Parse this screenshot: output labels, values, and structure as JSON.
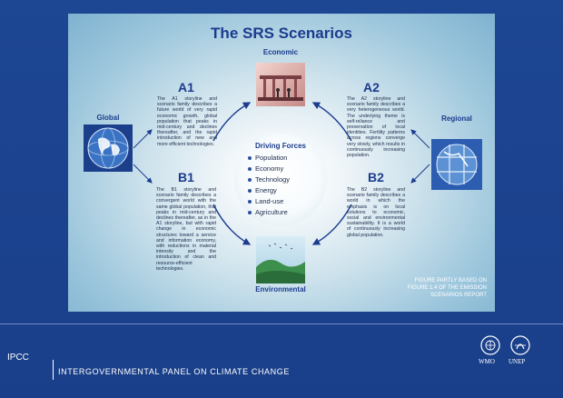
{
  "title": "The SRS Scenarios",
  "axes": {
    "top": "Economic",
    "bottom": "Environmental",
    "left": "Global",
    "right": "Regional"
  },
  "scenarios": {
    "a1": {
      "heading": "A1",
      "text": "The A1 storyline and scenario family describes a future world of very rapid economic growth, global population that peaks in mid-century and declines thereafter, and the rapid introduction of new and more efficient technologies."
    },
    "a2": {
      "heading": "A2",
      "text": "The A2 storyline and scenario family describes a very heterogeneous world. The underlying theme is self-reliance and preservation of local identities. Fertility patterns across regions converge very slowly, which results in continuously increasing population."
    },
    "b1": {
      "heading": "B1",
      "text": "The B1 storyline and scenario family describes a convergent world with the same global population, that peaks in mid-century and declines thereafter, as in the A1 storyline, but with rapid change in economic structures toward a service and information economy, with reductions in material intensity and the introduction of clean and resource-efficient technologies."
    },
    "b2": {
      "heading": "B2",
      "text": "The B2 storyline and scenario family describes a world in which the emphasis is on local solutions to economic, social and environmental sustainability. It is a world of continuously increasing global population."
    }
  },
  "driving_forces": {
    "title": "Driving Forces",
    "items": [
      "Population",
      "Economy",
      "Technology",
      "Energy",
      "Land-use",
      "Agriculture"
    ]
  },
  "note": [
    "FIGURE PARTLY BASED ON",
    "FIGURE 1.4 OF THE EMISSION",
    "SCENARIOS REPORT"
  ],
  "footer": {
    "short": "IPCC",
    "long": "INTERGOVERNMENTAL PANEL ON CLIMATE CHANGE",
    "logos": [
      "WMO",
      "UNEP"
    ]
  },
  "colors": {
    "background": "#1a3f8a",
    "heading": "#1b3c8e",
    "arrow": "#1b3c8e"
  },
  "icons": [
    "globe-icon",
    "regional-globe-icon",
    "economic-image",
    "environmental-image",
    "wmo-logo-icon",
    "unep-logo-icon"
  ]
}
